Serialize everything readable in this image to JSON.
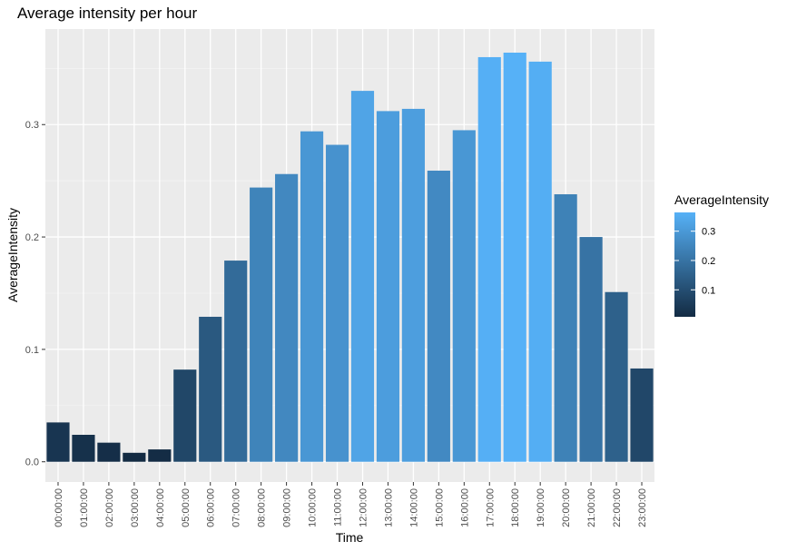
{
  "chart_data": {
    "type": "bar",
    "title": "Average intensity per hour",
    "xlabel": "Time",
    "ylabel": "AverageIntensity",
    "categories": [
      "00:00:00",
      "01:00:00",
      "02:00:00",
      "03:00:00",
      "04:00:00",
      "05:00:00",
      "06:00:00",
      "07:00:00",
      "08:00:00",
      "09:00:00",
      "10:00:00",
      "11:00:00",
      "12:00:00",
      "13:00:00",
      "14:00:00",
      "15:00:00",
      "16:00:00",
      "17:00:00",
      "18:00:00",
      "19:00:00",
      "20:00:00",
      "21:00:00",
      "22:00:00",
      "23:00:00"
    ],
    "values": [
      0.035,
      0.024,
      0.017,
      0.008,
      0.011,
      0.082,
      0.129,
      0.179,
      0.244,
      0.256,
      0.294,
      0.282,
      0.33,
      0.312,
      0.314,
      0.259,
      0.295,
      0.36,
      0.364,
      0.356,
      0.238,
      0.2,
      0.151,
      0.083
    ],
    "ylim": [
      -0.018,
      0.385
    ],
    "yticks": [
      0.0,
      0.1,
      0.2,
      0.3
    ],
    "ytick_labels": [
      "0.0",
      "0.1",
      "0.2",
      "0.3"
    ],
    "grid": true,
    "legend": {
      "title": "AverageIntensity",
      "placement": "right",
      "ticks": [
        0.1,
        0.2,
        0.3
      ],
      "tick_labels": [
        "0.1",
        "0.2",
        "0.3"
      ],
      "range": [
        0.008,
        0.364
      ]
    },
    "colors": {
      "low": "#132B43",
      "high": "#56B1F7",
      "panel": "#EBEBEB",
      "grid_major": "#FFFFFF",
      "axis_text": "#4D4D4D"
    }
  }
}
